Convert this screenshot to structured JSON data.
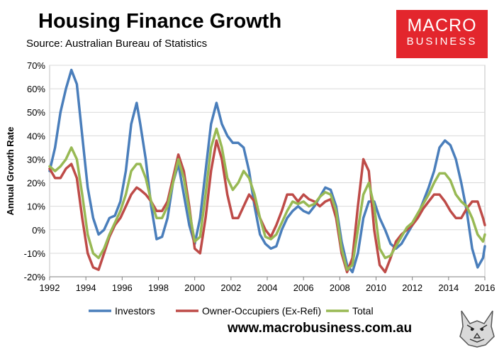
{
  "header": {
    "title": "Housing Finance Growth",
    "subtitle": "Source: Australian Bureau of Statistics"
  },
  "logo": {
    "line1": "MACRO",
    "line2": "BUSINESS"
  },
  "footer": {
    "url": "www.macrobusiness.com.au"
  },
  "colors": {
    "investors": "#4a7ebb",
    "owner_occupiers": "#be4b48",
    "total": "#98b954",
    "brand_red": "#e3262d"
  },
  "chart_data": {
    "type": "line",
    "title": "Housing Finance Growth",
    "xlabel": "",
    "ylabel": "Annual Growth Rate",
    "xlim": [
      1992,
      2016
    ],
    "ylim": [
      -20,
      70
    ],
    "x_ticks": [
      1992,
      1994,
      1996,
      1998,
      2000,
      2002,
      2004,
      2006,
      2008,
      2010,
      2012,
      2014,
      2016
    ],
    "x_tick_labels": [
      "1992",
      "1994",
      "1996",
      "1998",
      "2000",
      "2002",
      "2004",
      "2006",
      "2008",
      "2010",
      "2012",
      "2014",
      "2016"
    ],
    "y_ticks": [
      -20,
      -10,
      0,
      10,
      20,
      30,
      40,
      50,
      60,
      70
    ],
    "y_tick_labels": [
      "-20%",
      "-10%",
      "0%",
      "10%",
      "20%",
      "30%",
      "40%",
      "50%",
      "60%",
      "70%"
    ],
    "legend_position": "bottom",
    "series": [
      {
        "name": "Investors",
        "color": "#4a7ebb",
        "x": [
          1992.0,
          1992.3,
          1992.6,
          1992.9,
          1993.2,
          1993.5,
          1993.8,
          1994.1,
          1994.4,
          1994.7,
          1995.0,
          1995.3,
          1995.6,
          1995.9,
          1996.2,
          1996.5,
          1996.8,
          1997.0,
          1997.3,
          1997.6,
          1997.9,
          1998.2,
          1998.5,
          1998.8,
          1999.1,
          1999.4,
          1999.7,
          2000.0,
          2000.3,
          2000.6,
          2000.9,
          2001.2,
          2001.5,
          2001.8,
          2002.1,
          2002.4,
          2002.7,
          2003.0,
          2003.3,
          2003.6,
          2003.9,
          2004.2,
          2004.5,
          2004.8,
          2005.1,
          2005.4,
          2005.7,
          2006.0,
          2006.3,
          2006.6,
          2006.9,
          2007.2,
          2007.5,
          2007.8,
          2008.1,
          2008.4,
          2008.7,
          2009.0,
          2009.3,
          2009.6,
          2009.9,
          2010.2,
          2010.5,
          2010.8,
          2011.1,
          2011.4,
          2011.7,
          2012.0,
          2012.3,
          2012.6,
          2012.9,
          2013.2,
          2013.5,
          2013.8,
          2014.1,
          2014.4,
          2014.7,
          2015.0,
          2015.3,
          2015.6,
          2015.9,
          2016.0
        ],
        "y": [
          25,
          35,
          50,
          60,
          68,
          62,
          40,
          18,
          5,
          -2,
          0,
          5,
          6,
          12,
          25,
          45,
          54,
          45,
          30,
          10,
          -4,
          -3,
          5,
          20,
          28,
          15,
          2,
          -6,
          5,
          25,
          45,
          54,
          45,
          40,
          37,
          37,
          35,
          25,
          10,
          -2,
          -6,
          -8,
          -7,
          0,
          5,
          8,
          10,
          8,
          7,
          10,
          14,
          18,
          17,
          10,
          -5,
          -15,
          -18,
          -10,
          5,
          12,
          12,
          5,
          0,
          -6,
          -8,
          -6,
          -2,
          2,
          6,
          12,
          18,
          25,
          35,
          38,
          36,
          30,
          20,
          8,
          -8,
          -16,
          -12,
          -7
        ]
      },
      {
        "name": "Owner-Occupiers (Ex-Refi)",
        "color": "#be4b48",
        "x": [
          1992.0,
          1992.3,
          1992.6,
          1992.9,
          1993.2,
          1993.5,
          1993.8,
          1994.1,
          1994.4,
          1994.7,
          1995.0,
          1995.3,
          1995.6,
          1995.9,
          1996.2,
          1996.5,
          1996.8,
          1997.0,
          1997.3,
          1997.6,
          1997.9,
          1998.2,
          1998.5,
          1998.8,
          1999.1,
          1999.4,
          1999.7,
          2000.0,
          2000.3,
          2000.6,
          2000.9,
          2001.2,
          2001.5,
          2001.8,
          2002.1,
          2002.4,
          2002.7,
          2003.0,
          2003.3,
          2003.6,
          2003.9,
          2004.2,
          2004.5,
          2004.8,
          2005.1,
          2005.4,
          2005.7,
          2006.0,
          2006.3,
          2006.6,
          2006.9,
          2007.2,
          2007.5,
          2007.8,
          2008.1,
          2008.4,
          2008.7,
          2009.0,
          2009.3,
          2009.6,
          2009.9,
          2010.2,
          2010.5,
          2010.8,
          2011.1,
          2011.4,
          2011.7,
          2012.0,
          2012.3,
          2012.6,
          2012.9,
          2013.2,
          2013.5,
          2013.8,
          2014.1,
          2014.4,
          2014.7,
          2015.0,
          2015.3,
          2015.6,
          2015.9,
          2016.0
        ],
        "y": [
          26,
          22,
          22,
          26,
          28,
          22,
          5,
          -10,
          -16,
          -17,
          -10,
          -3,
          2,
          5,
          10,
          15,
          18,
          17,
          15,
          12,
          8,
          8,
          12,
          22,
          32,
          25,
          10,
          -8,
          -10,
          5,
          25,
          38,
          30,
          15,
          5,
          5,
          10,
          15,
          12,
          5,
          0,
          -3,
          2,
          8,
          15,
          15,
          12,
          15,
          13,
          12,
          10,
          12,
          13,
          5,
          -10,
          -18,
          -12,
          10,
          30,
          25,
          0,
          -15,
          -18,
          -12,
          -5,
          -2,
          0,
          2,
          5,
          9,
          12,
          15,
          15,
          12,
          8,
          5,
          5,
          9,
          12,
          12,
          5,
          2
        ]
      },
      {
        "name": "Total",
        "color": "#98b954",
        "x": [
          1992.0,
          1992.3,
          1992.6,
          1992.9,
          1993.2,
          1993.5,
          1993.8,
          1994.1,
          1994.4,
          1994.7,
          1995.0,
          1995.3,
          1995.6,
          1995.9,
          1996.2,
          1996.5,
          1996.8,
          1997.0,
          1997.3,
          1997.6,
          1997.9,
          1998.2,
          1998.5,
          1998.8,
          1999.1,
          1999.4,
          1999.7,
          2000.0,
          2000.3,
          2000.6,
          2000.9,
          2001.2,
          2001.5,
          2001.8,
          2002.1,
          2002.4,
          2002.7,
          2003.0,
          2003.3,
          2003.6,
          2003.9,
          2004.2,
          2004.5,
          2004.8,
          2005.1,
          2005.4,
          2005.7,
          2006.0,
          2006.3,
          2006.6,
          2006.9,
          2007.2,
          2007.5,
          2007.8,
          2008.1,
          2008.4,
          2008.7,
          2009.0,
          2009.3,
          2009.6,
          2009.9,
          2010.2,
          2010.5,
          2010.8,
          2011.1,
          2011.4,
          2011.7,
          2012.0,
          2012.3,
          2012.6,
          2012.9,
          2013.2,
          2013.5,
          2013.8,
          2014.1,
          2014.4,
          2014.7,
          2015.0,
          2015.3,
          2015.6,
          2015.9,
          2016.0
        ],
        "y": [
          27,
          25,
          27,
          30,
          35,
          30,
          15,
          -2,
          -10,
          -12,
          -8,
          -2,
          3,
          8,
          15,
          25,
          28,
          28,
          22,
          12,
          5,
          5,
          10,
          20,
          30,
          22,
          8,
          -5,
          -3,
          15,
          35,
          43,
          35,
          22,
          17,
          20,
          25,
          22,
          15,
          5,
          -3,
          -4,
          -2,
          3,
          8,
          12,
          11,
          12,
          10,
          11,
          14,
          16,
          15,
          8,
          -8,
          -17,
          -15,
          0,
          15,
          20,
          10,
          -8,
          -12,
          -11,
          -7,
          -3,
          1,
          3,
          7,
          11,
          15,
          20,
          24,
          24,
          21,
          15,
          12,
          10,
          5,
          -2,
          -5,
          -2
        ]
      }
    ]
  }
}
